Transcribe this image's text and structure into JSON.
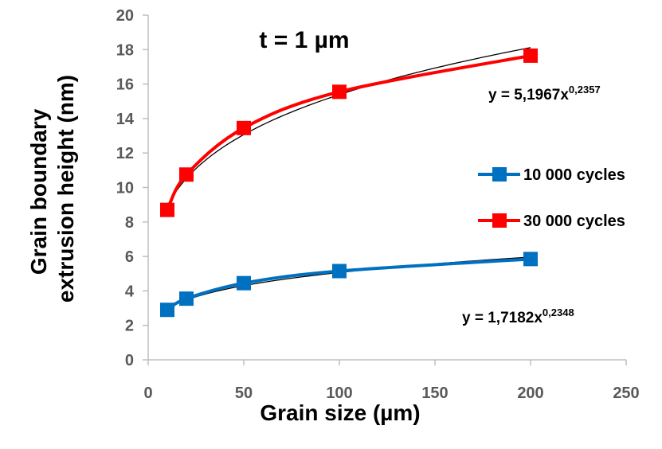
{
  "chart_data": {
    "type": "scatter",
    "title": "",
    "annotation": "t = 1 µm",
    "xlabel": "Grain size (µm)",
    "ylabel_lines": [
      "Grain boundary",
      "extrusion height (nm)"
    ],
    "xlim": [
      0,
      250
    ],
    "ylim": [
      0,
      20
    ],
    "xticks": [
      0,
      50,
      100,
      150,
      200,
      250
    ],
    "yticks": [
      0,
      2,
      4,
      6,
      8,
      10,
      12,
      14,
      16,
      18,
      20
    ],
    "grid": false,
    "legend_position": "right",
    "series": [
      {
        "name": "10 000 cycles",
        "color": "#0070C0",
        "marker": "square",
        "x": [
          10,
          20,
          50,
          100,
          200
        ],
        "y": [
          2.9,
          3.55,
          4.45,
          5.15,
          5.85
        ],
        "trendline": {
          "type": "power",
          "coefficient": 1.7182,
          "exponent": 0.2348,
          "equation_main": "y = 1,7182x",
          "equation_exp": "0,2348",
          "color": "#000000"
        }
      },
      {
        "name": "30 000 cycles",
        "color": "#FF0000",
        "marker": "square",
        "x": [
          10,
          20,
          50,
          100,
          200
        ],
        "y": [
          8.7,
          10.75,
          13.45,
          15.55,
          17.65
        ],
        "trendline": {
          "type": "power",
          "coefficient": 5.1967,
          "exponent": 0.2357,
          "equation_main": "y = 5,1967x",
          "equation_exp": "0,2357",
          "color": "#000000"
        }
      }
    ]
  }
}
